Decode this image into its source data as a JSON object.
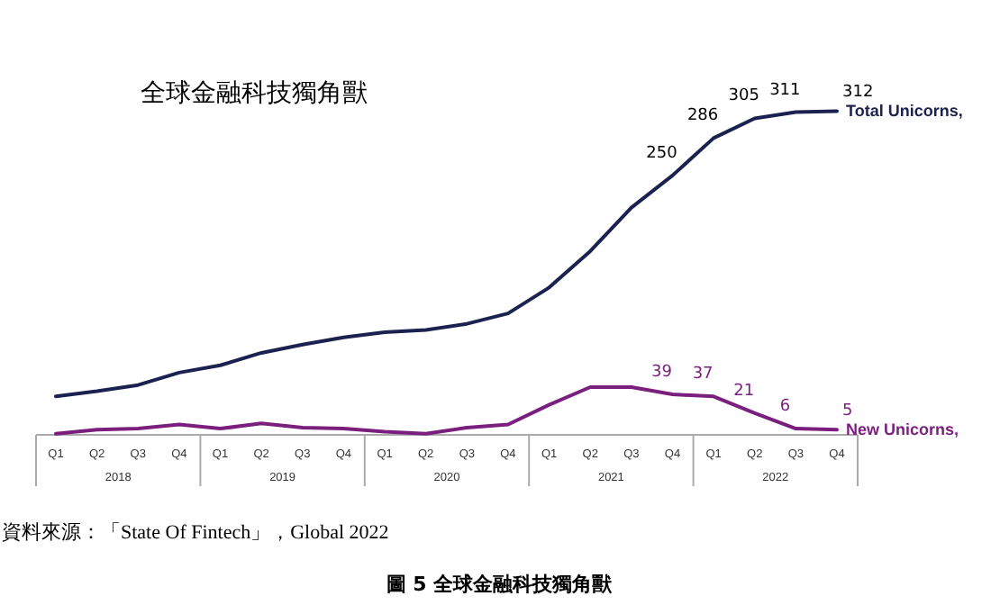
{
  "chart_data": {
    "type": "line",
    "title": "全球金融科技獨角獸",
    "categories": [
      "Q1",
      "Q2",
      "Q3",
      "Q4",
      "Q1",
      "Q2",
      "Q3",
      "Q4",
      "Q1",
      "Q2",
      "Q3",
      "Q4",
      "Q1",
      "Q2",
      "Q3",
      "Q4",
      "Q1",
      "Q2",
      "Q3",
      "Q4"
    ],
    "series": [
      {
        "name": "Total Unicorns,",
        "color": "#1b2250",
        "values": [
          37,
          42,
          48,
          60,
          67,
          79,
          87,
          94,
          99,
          101,
          107,
          117,
          142,
          177,
          219,
          250,
          286,
          305,
          311,
          312
        ],
        "value_labels": [
          null,
          null,
          null,
          null,
          null,
          null,
          null,
          null,
          null,
          null,
          null,
          null,
          null,
          null,
          null,
          "250",
          "286",
          "305",
          "311",
          "312"
        ]
      },
      {
        "name": "New Unicorns,",
        "color": "#7b1f7f",
        "values": [
          1,
          5,
          6,
          10,
          6,
          11,
          7,
          6,
          3,
          1,
          7,
          10,
          29,
          46,
          46,
          39,
          37,
          21,
          6,
          5
        ],
        "value_labels": [
          null,
          null,
          null,
          null,
          null,
          null,
          null,
          null,
          null,
          null,
          null,
          null,
          null,
          null,
          null,
          "39",
          "37",
          "21",
          "6",
          "5"
        ]
      }
    ],
    "grid": false,
    "marker": "none",
    "line_style": "solid",
    "annotations": [
      "2018",
      "2019",
      "2020",
      "2021",
      "2022",
      "資料來源：「State Of Fintech」，Global 2022",
      "圖 5  全球金融科技獨角獸"
    ]
  }
}
